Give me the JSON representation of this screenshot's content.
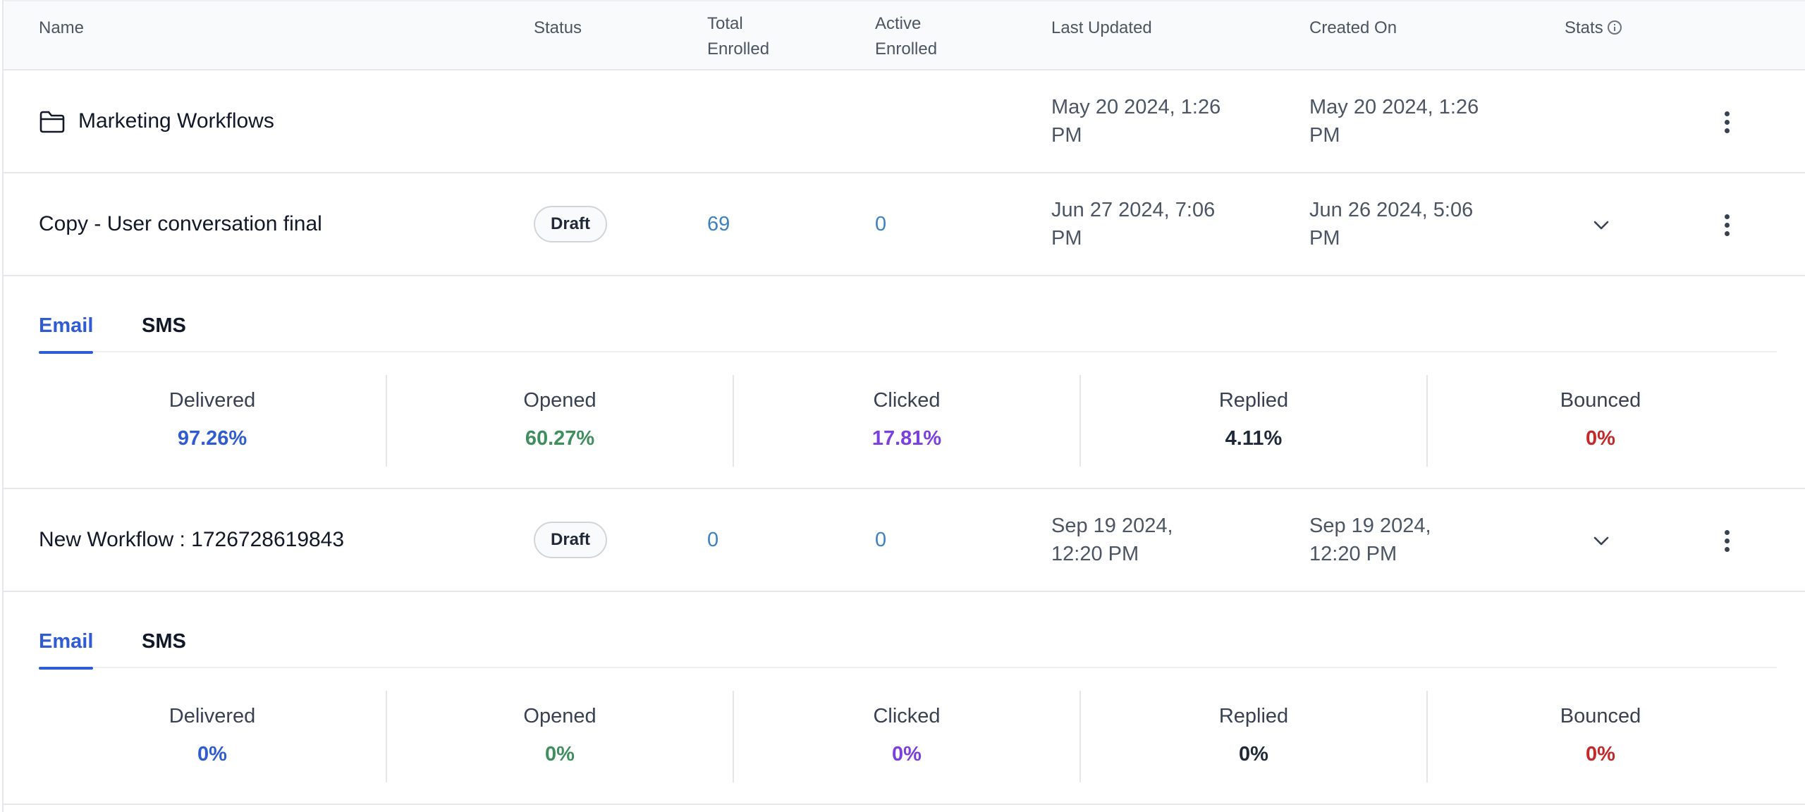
{
  "columns": {
    "name": "Name",
    "status": "Status",
    "total_enrolled_1": "Total",
    "total_enrolled_2": "Enrolled",
    "active_enrolled_1": "Active",
    "active_enrolled_2": "Enrolled",
    "last_updated": "Last Updated",
    "created_on": "Created On",
    "stats": "Stats"
  },
  "rows": [
    {
      "type": "folder",
      "name": "Marketing Workflows",
      "last_updated_1": "May 20 2024, 1:26",
      "last_updated_2": "PM",
      "created_on_1": "May 20 2024, 1:26",
      "created_on_2": "PM"
    },
    {
      "type": "workflow",
      "name": "Copy - User conversation final",
      "status": "Draft",
      "total_enrolled": "69",
      "active_enrolled": "0",
      "last_updated_1": "Jun 27 2024, 7:06",
      "last_updated_2": "PM",
      "created_on_1": "Jun 26 2024, 5:06",
      "created_on_2": "PM",
      "tabs": [
        "Email",
        "SMS"
      ],
      "metrics": [
        {
          "label": "Delivered",
          "value": "97.26%"
        },
        {
          "label": "Opened",
          "value": "60.27%"
        },
        {
          "label": "Clicked",
          "value": "17.81%"
        },
        {
          "label": "Replied",
          "value": "4.11%"
        },
        {
          "label": "Bounced",
          "value": "0%"
        }
      ]
    },
    {
      "type": "workflow",
      "name": "New Workflow : 1726728619843",
      "status": "Draft",
      "total_enrolled": "0",
      "active_enrolled": "0",
      "last_updated_1": "Sep 19 2024,",
      "last_updated_2": "12:20 PM",
      "created_on_1": "Sep 19 2024,",
      "created_on_2": "12:20 PM",
      "tabs": [
        "Email",
        "SMS"
      ],
      "metrics": [
        {
          "label": "Delivered",
          "value": "0%"
        },
        {
          "label": "Opened",
          "value": "0%"
        },
        {
          "label": "Clicked",
          "value": "0%"
        },
        {
          "label": "Replied",
          "value": "0%"
        },
        {
          "label": "Bounced",
          "value": "0%"
        }
      ]
    }
  ],
  "metric_colors": {
    "delivered": "#2f5bd3",
    "opened": "#3f8f5e",
    "clicked": "#7b3fe0",
    "replied": "#1f2937",
    "bounced": "#c62828"
  },
  "icons": {
    "folder": "folder-icon",
    "more": "more-vertical-icon",
    "expand": "chevron-down-icon",
    "info": "info-icon"
  }
}
